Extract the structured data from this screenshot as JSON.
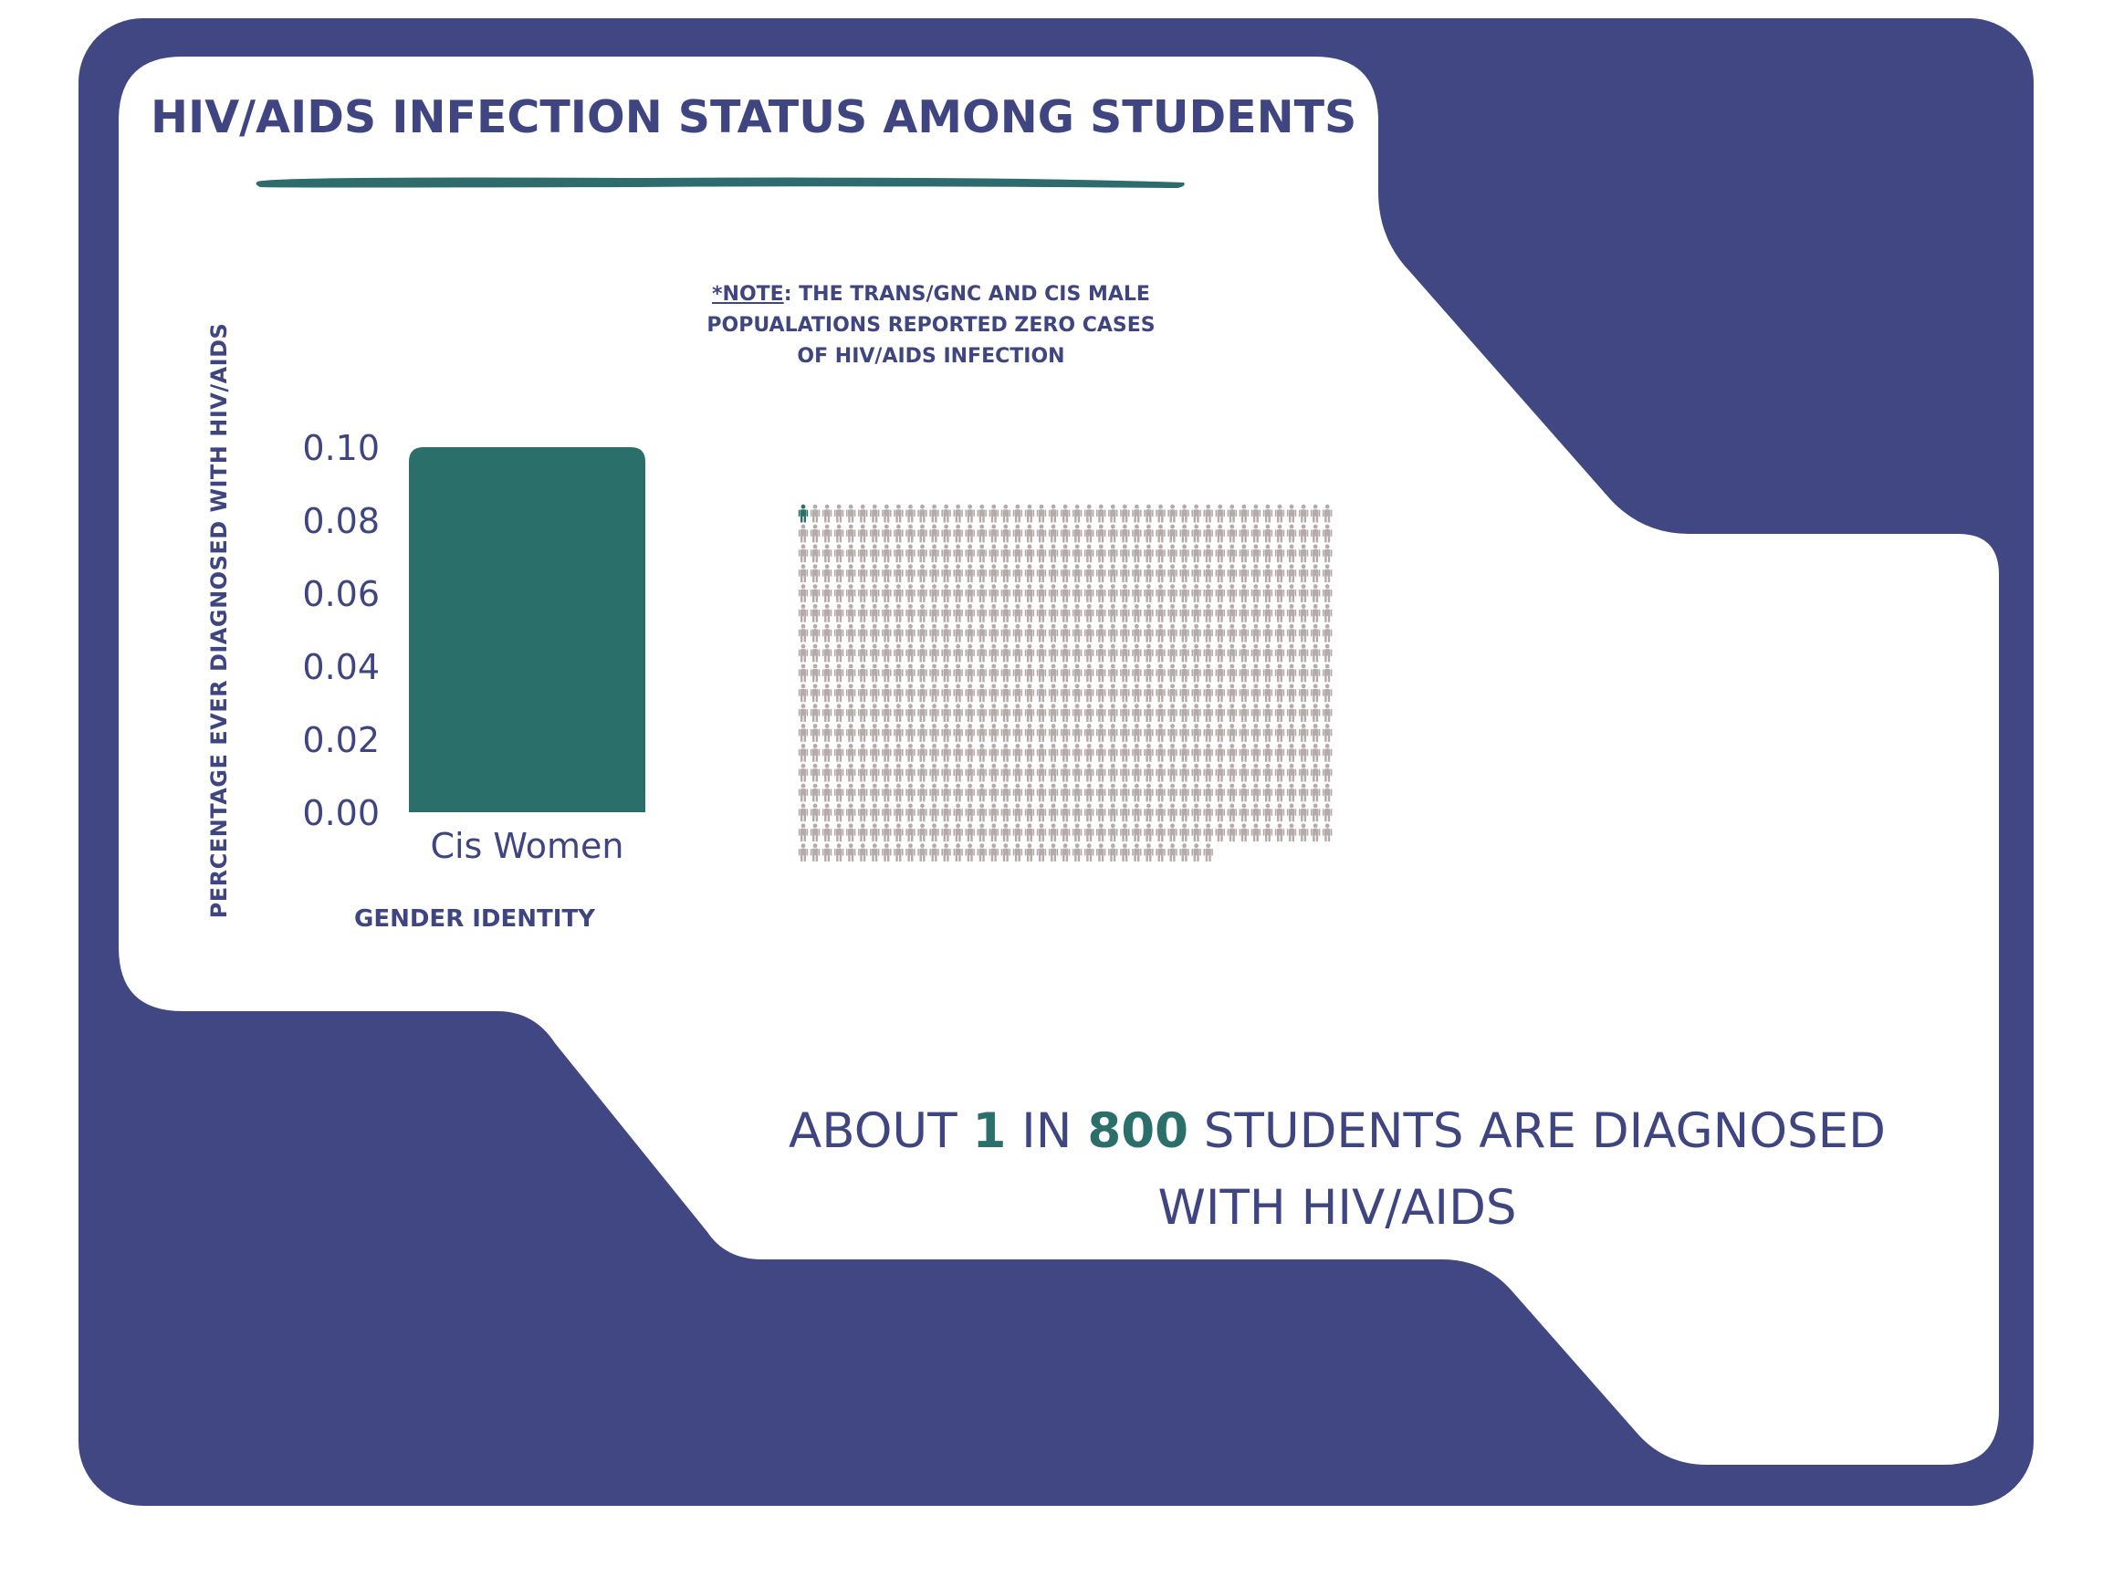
{
  "title": "HIV/AIDS INFECTION STATUS AMONG STUDENTS",
  "note": {
    "label": "*NOTE",
    "text": ": THE TRANS/GNC AND CIS MALE POPUALATIONS REPORTED ZERO CASES OF HIV/AIDS INFECTION"
  },
  "caption": {
    "part1": "ABOUT ",
    "num1": "1",
    "part2": " IN ",
    "num2": "800",
    "part3": " STUDENTS ARE DIAGNOSED WITH HIV/AIDS"
  },
  "colors": {
    "navy": "#404782",
    "teal": "#2b6f6b",
    "person_gray": "#b5abab",
    "text": "#3f4581"
  },
  "chart_data": [
    {
      "type": "bar",
      "categories": [
        "Cis Women"
      ],
      "values": [
        0.1
      ],
      "ylabel": "PERCENTAGE EVER DIAGNOSED WITH HIV/AIDS",
      "xlabel": "GENDER IDENTITY",
      "ylim": [
        0,
        0.1
      ],
      "yticks": [
        "0.00",
        "0.02",
        "0.04",
        "0.06",
        "0.08",
        "0.10"
      ],
      "grid": false,
      "bar_color": "#2b6f6b"
    },
    {
      "type": "pictogram",
      "total": 800,
      "highlighted": 1,
      "per_row": 45,
      "icon": "person-icon",
      "highlight_color": "#2b6f6b",
      "base_color": "#b5abab"
    }
  ]
}
